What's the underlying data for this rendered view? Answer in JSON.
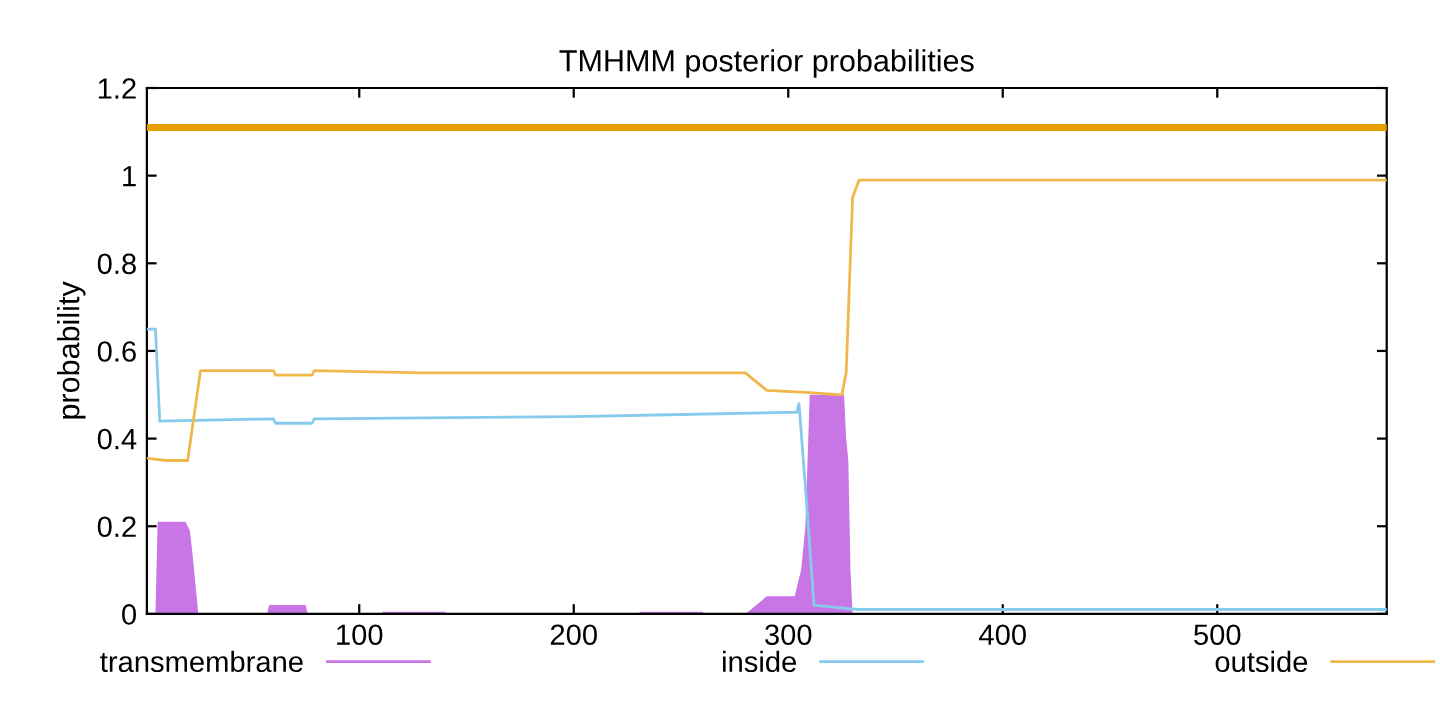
{
  "chart_data": {
    "type": "line",
    "title": "TMHMM posterior probabilities",
    "ylabel": "probability",
    "xlim": [
      1,
      579
    ],
    "ylim": [
      0,
      1.2
    ],
    "xticks": [
      100,
      200,
      300,
      400,
      500
    ],
    "yticks": [
      0,
      0.2,
      0.4,
      0.6,
      0.8,
      1,
      1.2
    ],
    "grid": false,
    "legend": "bottom",
    "ref_lines": [
      {
        "axis": "y",
        "value": 1.11,
        "label": null,
        "color": "#e69f00"
      }
    ],
    "series": [
      {
        "name": "transmembrane",
        "type": "area",
        "color": "#c875e6",
        "x": [
          1,
          5,
          6,
          19,
          21,
          22,
          23,
          25,
          57,
          58,
          75,
          76,
          110,
          111,
          140,
          141,
          230,
          231,
          260,
          261,
          280,
          290,
          303,
          306,
          308,
          310,
          326,
          327,
          328,
          329,
          330,
          579
        ],
        "values": [
          0,
          0,
          0.21,
          0.21,
          0.19,
          0.15,
          0.1,
          0,
          0,
          0.02,
          0.02,
          0,
          0,
          0.005,
          0.005,
          0,
          0,
          0.005,
          0.005,
          0,
          0,
          0.04,
          0.04,
          0.1,
          0.2,
          0.5,
          0.5,
          0.4,
          0.35,
          0.1,
          0,
          0
        ]
      },
      {
        "name": "inside",
        "color": "#86cbeb",
        "x": [
          1,
          5,
          7,
          60,
          61,
          78,
          79,
          200,
          250,
          300,
          304,
          305,
          308,
          312,
          332,
          579
        ],
        "values": [
          0.65,
          0.65,
          0.44,
          0.445,
          0.435,
          0.435,
          0.445,
          0.45,
          0.455,
          0.46,
          0.46,
          0.48,
          0.29,
          0.02,
          0.01,
          0.01
        ]
      },
      {
        "name": "outside",
        "color": "#f0b84a",
        "x": [
          1,
          10,
          20,
          26,
          60,
          61,
          78,
          79,
          130,
          280,
          290,
          310,
          325,
          327,
          330,
          333,
          579
        ],
        "values": [
          0.355,
          0.35,
          0.35,
          0.555,
          0.555,
          0.545,
          0.545,
          0.555,
          0.55,
          0.55,
          0.51,
          0.505,
          0.5,
          0.55,
          0.95,
          0.99,
          0.99
        ]
      }
    ]
  }
}
